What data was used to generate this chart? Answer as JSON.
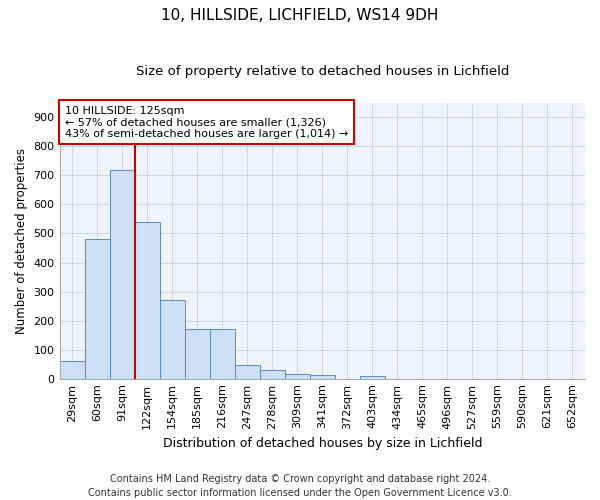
{
  "title1": "10, HILLSIDE, LICHFIELD, WS14 9DH",
  "title2": "Size of property relative to detached houses in Lichfield",
  "xlabel": "Distribution of detached houses by size in Lichfield",
  "ylabel": "Number of detached properties",
  "categories": [
    "29sqm",
    "60sqm",
    "91sqm",
    "122sqm",
    "154sqm",
    "185sqm",
    "216sqm",
    "247sqm",
    "278sqm",
    "309sqm",
    "341sqm",
    "372sqm",
    "403sqm",
    "434sqm",
    "465sqm",
    "496sqm",
    "527sqm",
    "559sqm",
    "590sqm",
    "621sqm",
    "652sqm"
  ],
  "values": [
    60,
    480,
    720,
    540,
    270,
    170,
    170,
    47,
    30,
    15,
    13,
    0,
    8,
    0,
    0,
    0,
    0,
    0,
    0,
    0,
    0
  ],
  "bar_color": "#cde0f5",
  "bar_edge_color": "#5a8ac6",
  "red_line_index": 3,
  "annotation_line1": "10 HILLSIDE: 125sqm",
  "annotation_line2": "← 57% of detached houses are smaller (1,326)",
  "annotation_line3": "43% of semi-detached houses are larger (1,014) →",
  "annotation_box_color": "#ffffff",
  "annotation_box_edge": "#cc0000",
  "red_line_color": "#cc0000",
  "ylim": [
    0,
    950
  ],
  "yticks": [
    0,
    100,
    200,
    300,
    400,
    500,
    600,
    700,
    800,
    900
  ],
  "footer": "Contains HM Land Registry data © Crown copyright and database right 2024.\nContains public sector information licensed under the Open Government Licence v3.0.",
  "title1_fontsize": 11,
  "title2_fontsize": 9.5,
  "xlabel_fontsize": 9,
  "ylabel_fontsize": 8.5,
  "tick_fontsize": 8,
  "annotation_fontsize": 8,
  "footer_fontsize": 7
}
